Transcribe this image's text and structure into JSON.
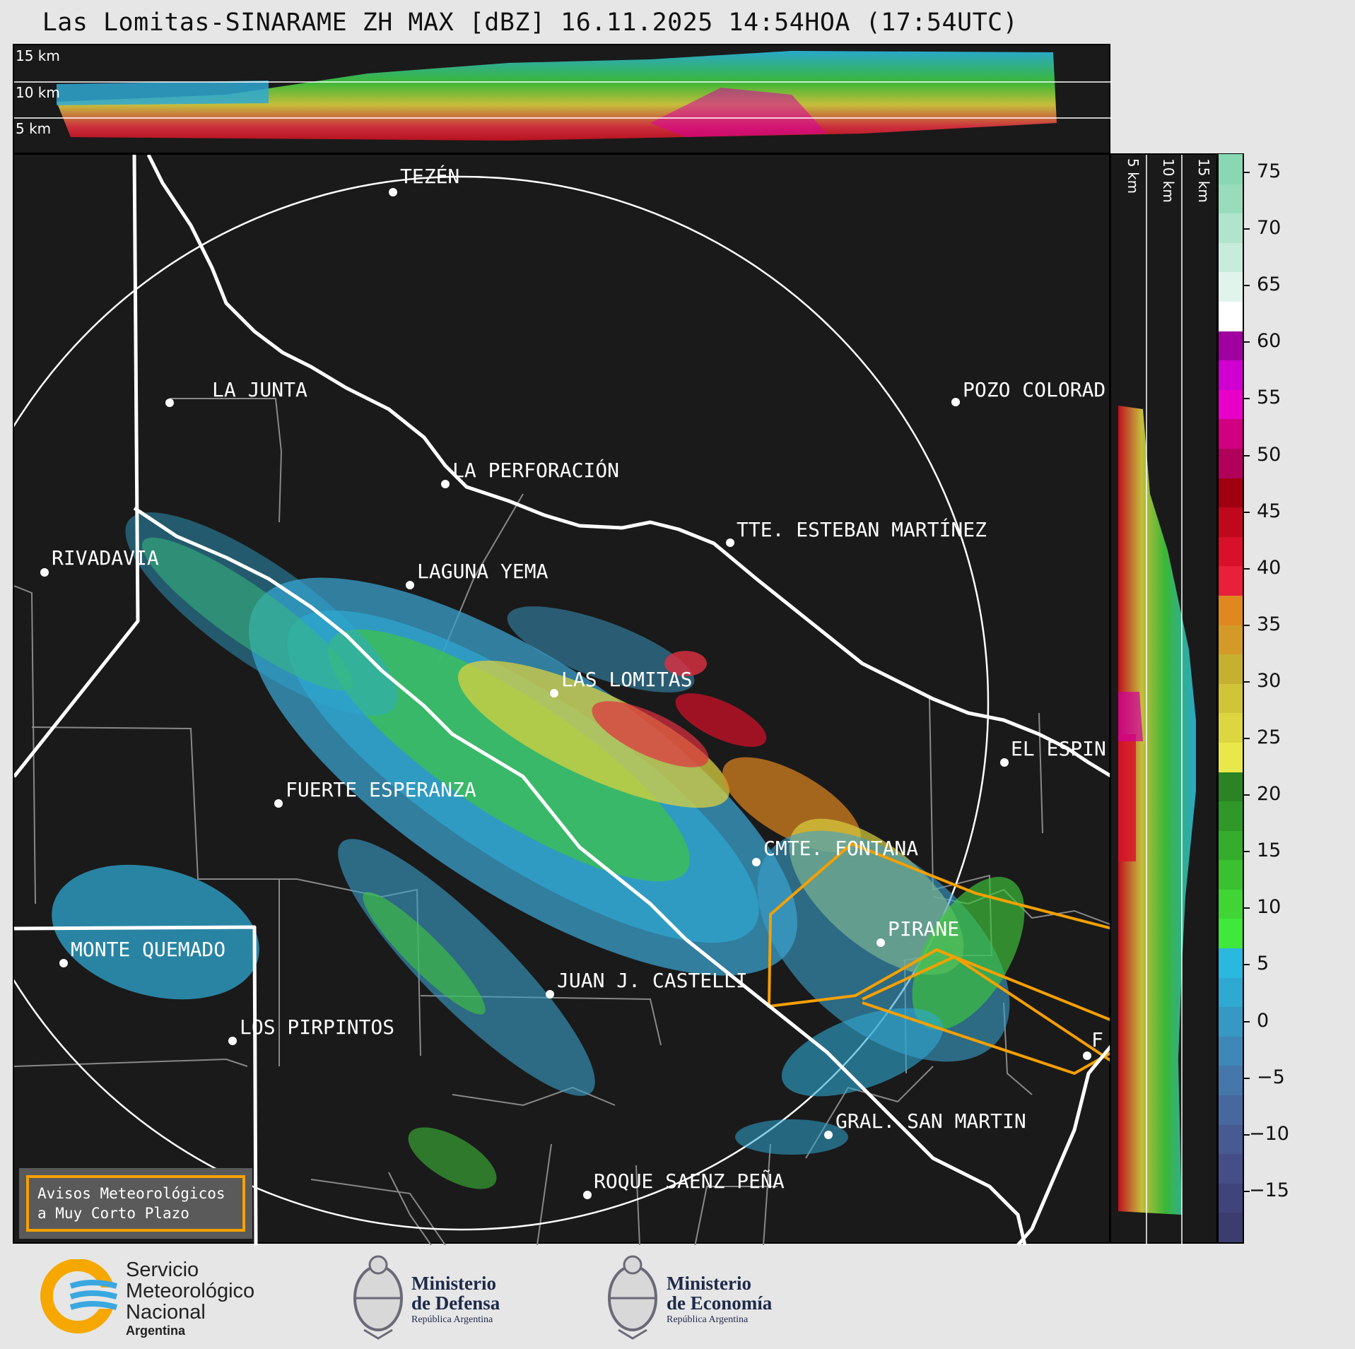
{
  "title": "Las Lomitas-SINARAME ZH MAX [dBZ] 16.11.2025 14:54HOA (17:54UTC)",
  "top_panel": {
    "labels": [
      "15 km",
      "10 km",
      "5 km"
    ]
  },
  "side_panel": {
    "labels": [
      "5 km",
      "10 km",
      "15 km"
    ]
  },
  "colorbar": {
    "unit": "dBZ",
    "ticks": [
      "75",
      "70",
      "65",
      "60",
      "55",
      "50",
      "45",
      "40",
      "35",
      "30",
      "25",
      "20",
      "15",
      "10",
      "5",
      "0",
      "−5",
      "−10",
      "−15"
    ],
    "colors": [
      "#3c3c6e",
      "#40447a",
      "#454e86",
      "#475a92",
      "#47689e",
      "#4577aa",
      "#3f87b6",
      "#3798c4",
      "#2fa8d2",
      "#2ab8de",
      "#3fe83a",
      "#40d435",
      "#3ac030",
      "#35ac2c",
      "#2f9828",
      "#2a8424",
      "#e8e84a",
      "#dcd640",
      "#d0c438",
      "#c6b030",
      "#d49a28",
      "#e08820",
      "#e8203a",
      "#d8102a",
      "#c0081c",
      "#a00010",
      "#b0005a",
      "#d00080",
      "#e800c8",
      "#d000d0",
      "#a000a0",
      "#ffffff",
      "#e0f4ec",
      "#c8ecdc",
      "#b0e4cc",
      "#98dcbc",
      "#88d8b4"
    ]
  },
  "cities": [
    {
      "name": "TEZÉN"
    },
    {
      "name": "LA JUNTA"
    },
    {
      "name": "POZO COLORAD"
    },
    {
      "name": "LA PERFORACIÓN"
    },
    {
      "name": "TTE. ESTEBAN MARTÍNEZ"
    },
    {
      "name": "RIVADAVIA"
    },
    {
      "name": "LAGUNA YEMA"
    },
    {
      "name": "LAS LOMITAS"
    },
    {
      "name": "EL ESPIN"
    },
    {
      "name": "FUERTE ESPERANZA"
    },
    {
      "name": "CMTE. FONTANA"
    },
    {
      "name": "PIRANE"
    },
    {
      "name": "MONTE QUEMADO"
    },
    {
      "name": "JUAN J. CASTELLI"
    },
    {
      "name": "LOS PIRPINTOS"
    },
    {
      "name": "F"
    },
    {
      "name": "GRAL. SAN MARTIN"
    },
    {
      "name": "ROQUE SAENZ PEÑA"
    }
  ],
  "notice": {
    "line1": "Avisos Meteorológicos",
    "line2": "a Muy Corto Plazo"
  },
  "logos": {
    "smn": {
      "line1": "Servicio",
      "line2": "Meteorológico",
      "line3": "Nacional",
      "line4": "Argentina"
    },
    "defensa": {
      "line1": "Ministerio",
      "line2": "de Defensa",
      "line3": "República Argentina"
    },
    "economia": {
      "line1": "Ministerio",
      "line2": "de Economía",
      "line3": "República Argentina"
    }
  }
}
